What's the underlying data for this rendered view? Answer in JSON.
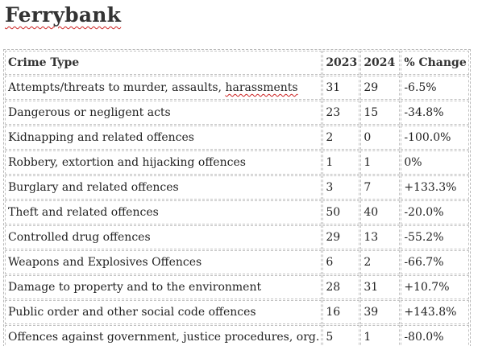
{
  "page": {
    "title": "Ferrybank"
  },
  "table": {
    "headers": {
      "crime_type": "Crime Type",
      "y2023": "2023",
      "y2024": "2024",
      "change": "% Change"
    },
    "rows": [
      {
        "type_pre": "Attempts/threats to murder, assaults, ",
        "type_flag": "harassments",
        "y2023": "31",
        "y2024": "29",
        "change": "-6.5%"
      },
      {
        "type_pre": "Dangerous or negligent acts",
        "type_flag": "",
        "y2023": "23",
        "y2024": "15",
        "change": "-34.8%"
      },
      {
        "type_pre": "Kidnapping and related offences",
        "type_flag": "",
        "y2023": "2",
        "y2024": "0",
        "change": "-100.0%"
      },
      {
        "type_pre": "Robbery, extortion and hijacking offences",
        "type_flag": "",
        "y2023": "1",
        "y2024": "1",
        "change": "0%"
      },
      {
        "type_pre": "Burglary and related offences",
        "type_flag": "",
        "y2023": "3",
        "y2024": "7",
        "change": "+133.3%"
      },
      {
        "type_pre": "Theft and related offences",
        "type_flag": "",
        "y2023": "50",
        "y2024": "40",
        "change": "-20.0%"
      },
      {
        "type_pre": "Controlled drug offences",
        "type_flag": "",
        "y2023": "29",
        "y2024": "13",
        "change": "-55.2%"
      },
      {
        "type_pre": "Weapons and Explosives Offences",
        "type_flag": "",
        "y2023": "6",
        "y2024": "2",
        "change": "-66.7%"
      },
      {
        "type_pre": "Damage to property and to the environment",
        "type_flag": "",
        "y2023": "28",
        "y2024": "31",
        "change": "+10.7%"
      },
      {
        "type_pre": "Public order and other social code offences",
        "type_flag": "",
        "y2023": "16",
        "y2024": "39",
        "change": "+143.8%"
      },
      {
        "type_pre": "Offences against government, justice procedures, org.",
        "type_flag": "",
        "y2023": "5",
        "y2024": "1",
        "change": "-80.0%"
      }
    ]
  },
  "colors": {
    "text": "#222222",
    "heading": "#333333",
    "grid_border": "#c2c2c2",
    "spellcheck_underline": "#cc2222"
  }
}
